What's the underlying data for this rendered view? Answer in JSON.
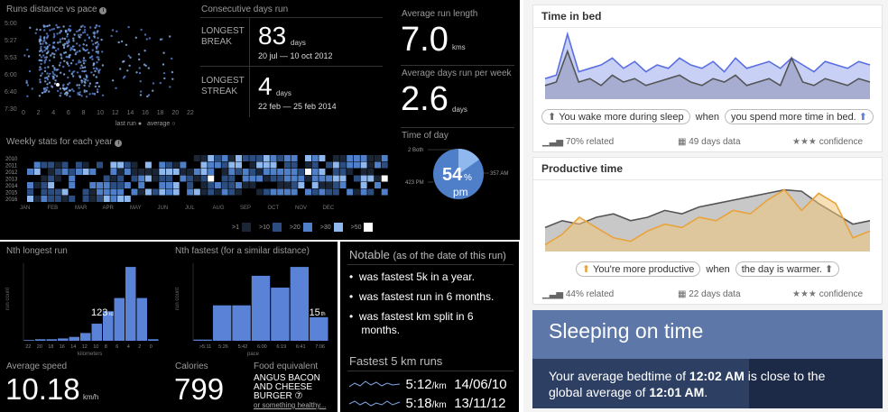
{
  "dashboard": {
    "scatter_title": "Runs distance vs pace",
    "last_run": "last run",
    "average": "average",
    "consec_title": "Consecutive days run",
    "longest_break_label": [
      "LONGEST",
      "BREAK"
    ],
    "longest_break_value": "83",
    "longest_break_unit": "days",
    "longest_break_dates": "20 jul — 10 oct 2012",
    "longest_streak_label": [
      "LONGEST",
      "STREAK"
    ],
    "longest_streak_value": "4",
    "longest_streak_unit": "days",
    "longest_streak_dates": "22 feb — 25 feb 2014",
    "avg_len_title": "Average run length",
    "avg_len_value": "7.0",
    "avg_len_unit": "kms",
    "avg_days_title": "Average days run per week",
    "avg_days_value": "2.6",
    "avg_days_unit": "days",
    "tod_title": "Time of day",
    "tod_value": "54",
    "tod_pct": "%",
    "tod_pm": "pm",
    "tod_labels": [
      "2 Both",
      "357 AM",
      "423 PM"
    ],
    "weekly_title": "Weekly stats for each year",
    "legend": [
      {
        "label": ">1",
        "color": "#1a2535"
      },
      {
        "label": ">10",
        "color": "#2c4d80"
      },
      {
        "label": ">20",
        "color": "#4e7fc8"
      },
      {
        "label": ">30",
        "color": "#8fb8ee"
      },
      {
        "label": ">50",
        "color": "#ffffff"
      }
    ]
  },
  "nth_longest": {
    "title": "Nth longest run",
    "xlabel": "kilometers",
    "ylabel": "run count",
    "marker": "123",
    "marker_suffix": "rd"
  },
  "nth_fastest": {
    "title": "Nth fastest (for a similar distance)",
    "xlabel": "pace",
    "ylabel": "run count",
    "marker": "15",
    "marker_suffix": "th"
  },
  "speed": {
    "title": "Average speed",
    "value": "10.18",
    "unit": "km/h"
  },
  "calories": {
    "title": "Calories",
    "value": "799"
  },
  "food": {
    "title": "Food equivalent",
    "lines": [
      "ANGUS BACON",
      "AND CHEESE",
      "BURGER ⑦"
    ],
    "alt": "or something healthy..."
  },
  "notable": {
    "title": "Notable",
    "subtitle": "(as of the date of this run)",
    "items": [
      "was fastest 5k in a year.",
      "was fastest run in 6 months.",
      "was fastest km split in 6",
      "months."
    ]
  },
  "fastest5": {
    "title": "Fastest 5 km runs",
    "runs": [
      {
        "pace": "5:12",
        "unit": "/km",
        "date": "14/06/10"
      },
      {
        "pace": "5:18",
        "unit": "/km",
        "date": "13/11/12"
      }
    ]
  },
  "cards": {
    "bed": {
      "title": "Time in bed",
      "pill1": "You wake more during sleep",
      "when": "when",
      "pill2": "you spend more time in bed.",
      "related": "70% related",
      "days": "49 days data",
      "confidence": "confidence"
    },
    "prod": {
      "title": "Productive time",
      "pill1": "You're more productive",
      "when": "when",
      "pill2": "the day is warmer.",
      "related": "44% related",
      "days": "22 days data",
      "confidence": "confidence"
    },
    "sleep": {
      "title": "Sleeping on time",
      "text1": "Your average bedtime of ",
      "time1": "12:02 AM",
      "text2": " is close to the",
      "text3": "global average of ",
      "time2": "12:01 AM",
      "text4": "."
    }
  },
  "colors": {
    "accent_blue": "#5a82d6",
    "orange": "#e8a33a",
    "grey_area": "#aaaaaa"
  },
  "chart_data": [
    {
      "type": "scatter",
      "title": "Runs distance vs pace",
      "x_ticks": [
        "0",
        "2",
        "4",
        "6",
        "8",
        "10",
        "12",
        "14",
        "16",
        "18",
        "20",
        "22"
      ],
      "y_ticks": [
        "5:00",
        "5:27",
        "5:53",
        "6:00",
        "6:40",
        "7:30"
      ],
      "xlim": [
        0,
        22
      ],
      "points_note": "dense cluster between 2 and 10 km"
    },
    {
      "type": "heatmap",
      "title": "Weekly stats for each year",
      "rows": [
        "2010",
        "2011",
        "2012",
        "2013",
        "2014",
        "2015",
        "2016"
      ],
      "months": [
        "JAN",
        "FEB",
        "MAR",
        "APR",
        "MAY",
        "JUN",
        "JUL",
        "AUG",
        "SEP",
        "OCT",
        "NOV",
        "DEC"
      ]
    },
    {
      "type": "bar",
      "title": "Nth longest run",
      "categories": [
        "22",
        "20",
        "18",
        "16",
        "14",
        "12",
        "10",
        "8",
        "6",
        "4",
        "2",
        "0"
      ],
      "values": [
        1,
        2,
        2,
        3,
        5,
        10,
        22,
        38,
        55,
        95,
        55,
        2
      ],
      "xlabel": "kilometers",
      "ylabel": "run count"
    },
    {
      "type": "bar",
      "title": "Nth fastest (for a similar distance)",
      "categories": [
        ">5:11",
        "5:26",
        "5:42",
        "6:00",
        "6:19",
        "6:41",
        "7:06"
      ],
      "values": [
        2,
        60,
        60,
        110,
        90,
        125,
        40
      ],
      "xlabel": "pace",
      "ylabel": "run count"
    },
    {
      "type": "area",
      "title": "Time in bed",
      "series": [
        {
          "values": [
            30,
            35,
            95,
            40,
            45,
            50,
            60,
            45,
            55,
            40,
            50,
            45,
            60,
            50,
            45,
            55,
            40,
            60,
            45,
            50,
            55,
            45,
            60,
            50,
            40,
            55,
            50,
            45,
            55,
            50
          ]
        },
        {
          "values": [
            20,
            25,
            70,
            25,
            30,
            20,
            35,
            25,
            30,
            20,
            25,
            30,
            35,
            25,
            20,
            30,
            25,
            35,
            20,
            25,
            30,
            20,
            60,
            25,
            20,
            30,
            25,
            20,
            30,
            25
          ]
        }
      ]
    },
    {
      "type": "area",
      "title": "Productive time",
      "series": [
        {
          "values": [
            35,
            45,
            40,
            50,
            55,
            45,
            50,
            60,
            55,
            65,
            70,
            75,
            80,
            85,
            90,
            88,
            70,
            55,
            40,
            45
          ]
        },
        {
          "values": [
            10,
            25,
            50,
            35,
            20,
            15,
            30,
            40,
            35,
            50,
            45,
            60,
            55,
            75,
            90,
            60,
            85,
            70,
            20,
            30
          ]
        }
      ]
    }
  ]
}
